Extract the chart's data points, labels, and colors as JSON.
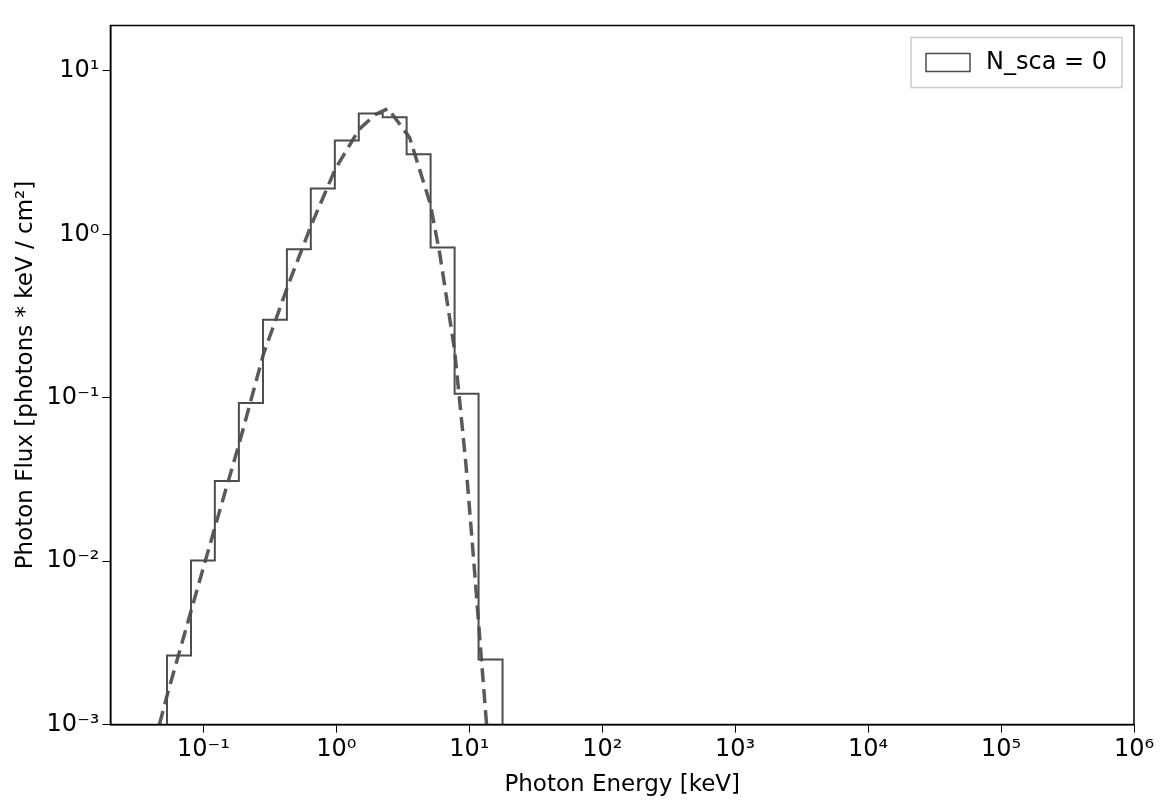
{
  "chart_data": {
    "type": "histogram",
    "xlabel": "Photon Energy [keV]",
    "ylabel": "Photon Flux [photons * keV / cm²]",
    "log": "xy",
    "grid": false,
    "legend": "top right",
    "xlim": [
      0.02,
      1000000
    ],
    "ylim": [
      0.001,
      19
    ],
    "xticks": [
      {
        "value": 0.1,
        "label": "10⁻¹"
      },
      {
        "value": 1,
        "label": "10⁰"
      },
      {
        "value": 10,
        "label": "10¹"
      },
      {
        "value": 100,
        "label": "10²"
      },
      {
        "value": 1000,
        "label": "10³"
      },
      {
        "value": 10000,
        "label": "10⁴"
      },
      {
        "value": 100000,
        "label": "10⁵"
      },
      {
        "value": 1000000,
        "label": "10⁶"
      }
    ],
    "yticks": [
      {
        "value": 0.001,
        "label": "10⁻³"
      },
      {
        "value": 0.01,
        "label": "10⁻²"
      },
      {
        "value": 0.1,
        "label": "10⁻¹"
      },
      {
        "value": 1,
        "label": "10⁰"
      },
      {
        "value": 10,
        "label": "10¹"
      }
    ],
    "series": [
      {
        "name": "N_sca = 0",
        "color": "#4d4d4d",
        "bins": [
          0.0533,
          0.0807,
          0.122,
          0.185,
          0.281,
          0.425,
          0.643,
          0.975,
          1.476,
          2.234,
          3.38,
          5.12,
          7.76,
          11.75,
          17.8
        ],
        "values": [
          0.00265,
          0.0101,
          0.031,
          0.093,
          0.3,
          0.81,
          1.91,
          3.75,
          5.5,
          5.2,
          3.09,
          0.83,
          0.106,
          0.0025
        ]
      },
      {
        "type": "line",
        "color": "#5a5a5a",
        "line_style": "dashed",
        "marker": "none",
        "x": [
          0.0467,
          0.0542,
          0.0817,
          0.1233,
          0.1875,
          0.2826,
          0.4265,
          0.648,
          0.985,
          1.486,
          1.96,
          2.45,
          3.56,
          5.1,
          6.01,
          7.76,
          9.42,
          10.9,
          12.2,
          13.5
        ],
        "values": [
          0.001,
          0.00158,
          0.00512,
          0.01656,
          0.0537,
          0.184,
          0.471,
          1.14,
          2.52,
          4.4,
          5.4,
          5.89,
          3.91,
          1.53,
          0.755,
          0.195,
          0.04,
          0.0092,
          0.00284,
          0.001
        ]
      }
    ]
  }
}
